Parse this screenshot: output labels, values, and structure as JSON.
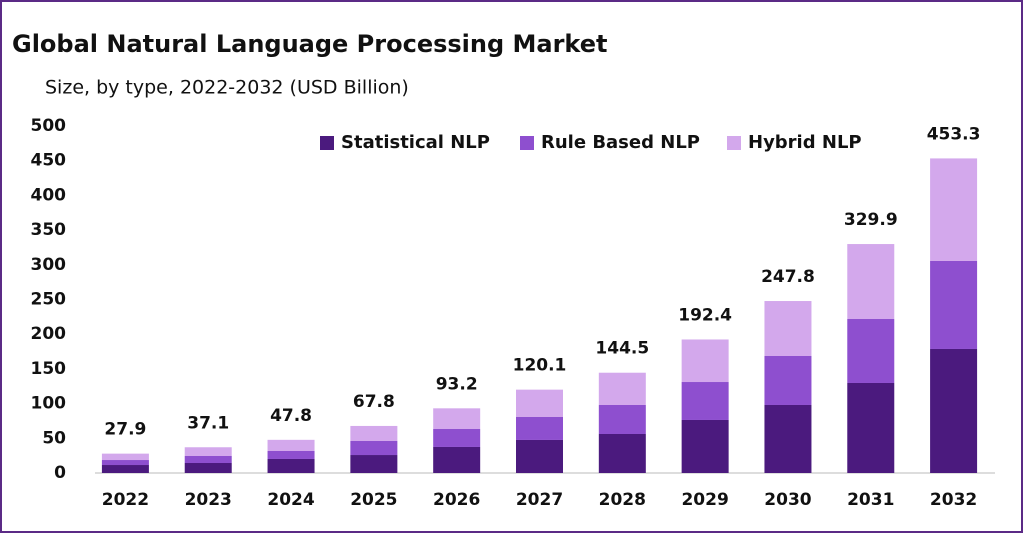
{
  "chart_data": {
    "type": "stacked_bar",
    "title": "Global Natural Language Processing Market",
    "subtitle": "Size, by type, 2022-2032 (USD Billion)",
    "categories": [
      "2022",
      "2023",
      "2024",
      "2025",
      "2026",
      "2027",
      "2028",
      "2029",
      "2030",
      "2031",
      "2032"
    ],
    "series": [
      {
        "name": "Statistical NLP",
        "color": "#4b1a7e",
        "values": [
          11.5,
          14.4,
          20.2,
          25.9,
          37.5,
          47.6,
          56.2,
          76.4,
          98.0,
          129.7,
          178.7
        ]
      },
      {
        "name": "Rule Based NLP",
        "color": "#8e4fcf",
        "values": [
          7.2,
          10.1,
          11.5,
          20.2,
          25.9,
          33.1,
          41.8,
          54.7,
          70.6,
          92.2,
          126.8
        ]
      },
      {
        "name": "Hybrid NLP",
        "color": "#d3a8ec",
        "values": [
          9.2,
          12.6,
          16.1,
          21.7,
          29.8,
          39.4,
          46.5,
          61.3,
          79.2,
          108.0,
          147.8
        ]
      }
    ],
    "totals": [
      27.9,
      37.1,
      47.8,
      67.8,
      93.2,
      120.1,
      144.5,
      192.4,
      247.8,
      329.9,
      453.3
    ],
    "ylim": [
      0,
      500
    ],
    "yticks": [
      0,
      50,
      100,
      150,
      200,
      250,
      300,
      350,
      400,
      450,
      500
    ],
    "legend": "top"
  }
}
